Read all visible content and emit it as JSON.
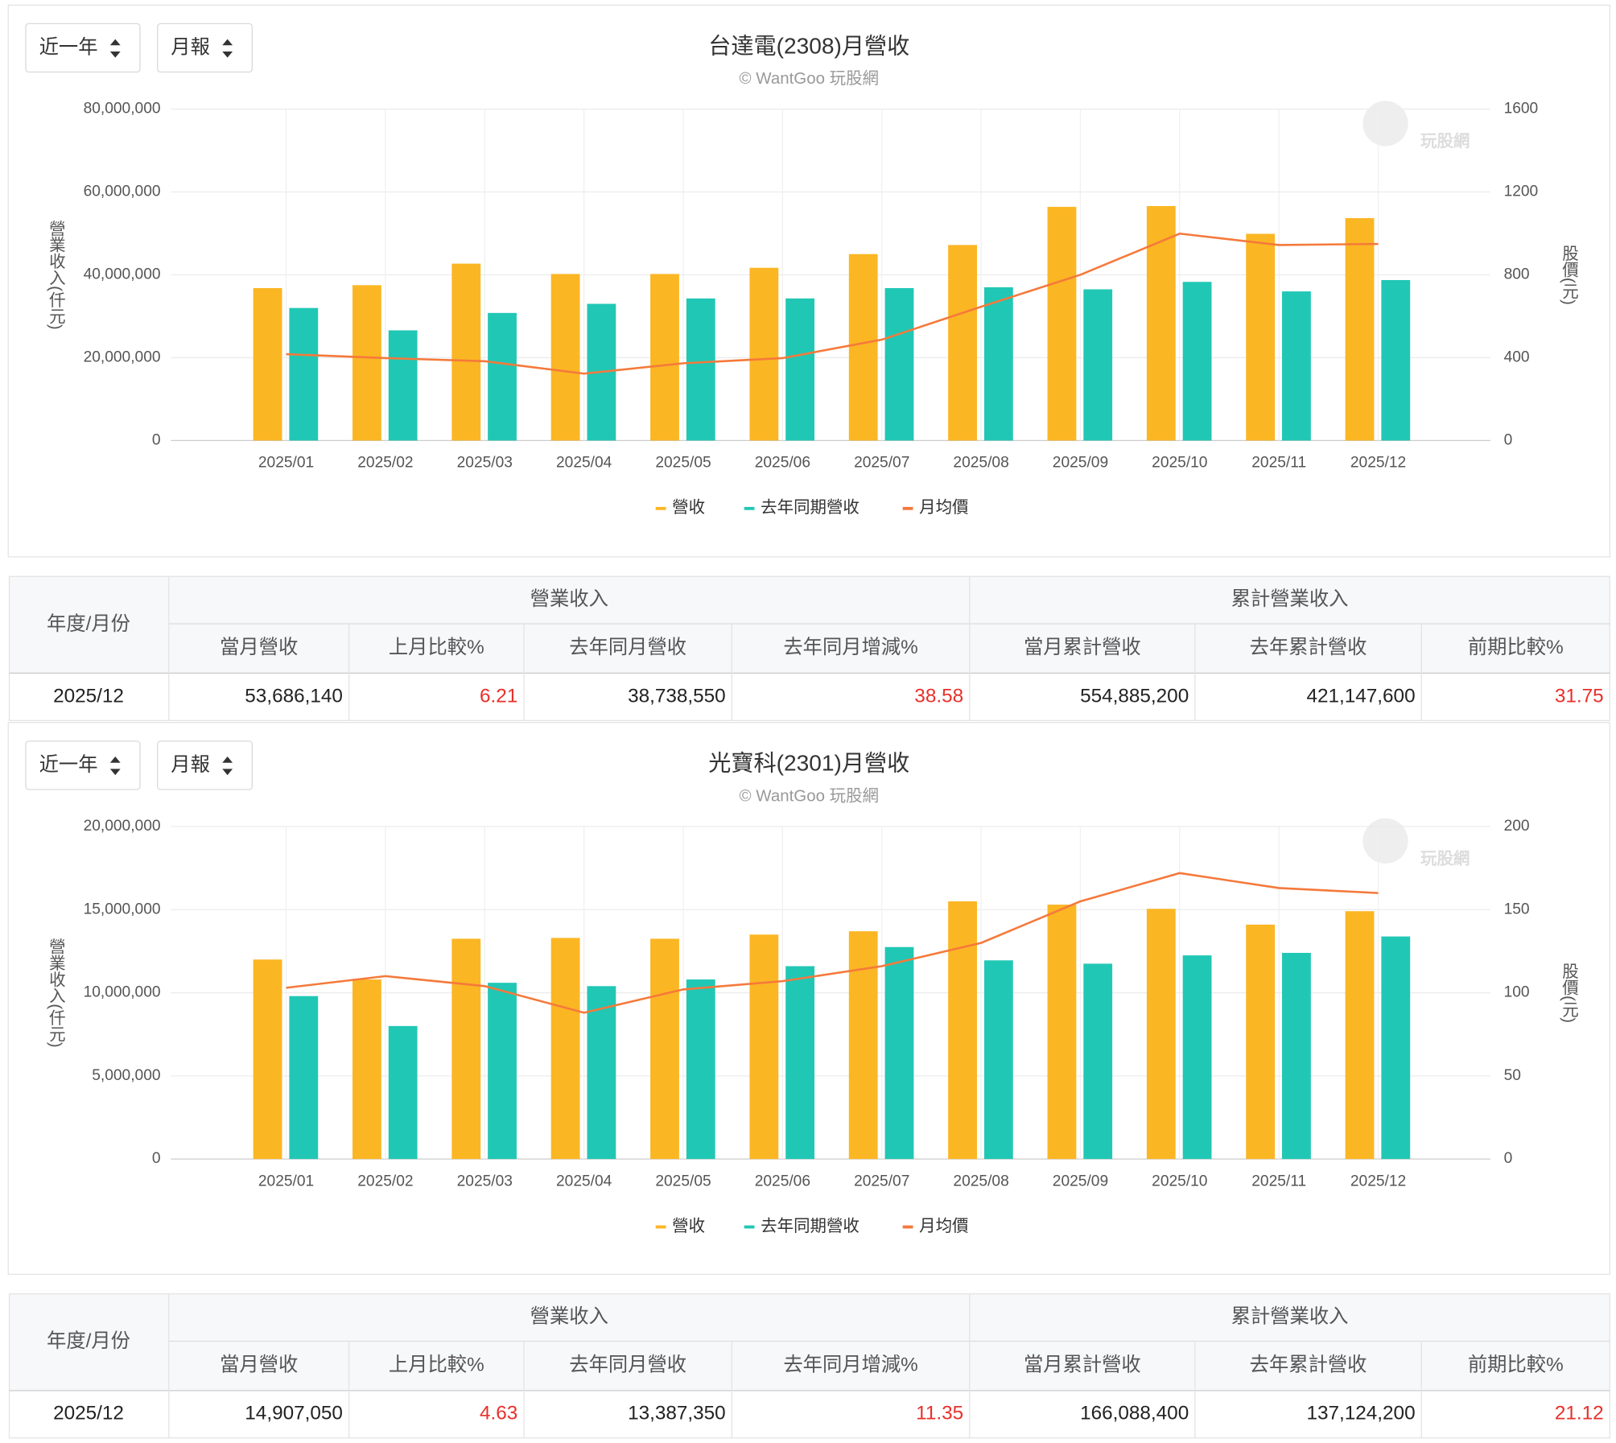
{
  "chart_data": [
    {
      "type": "bar",
      "title": "台達電(2308)月營收",
      "subtitle": "© WantGoo 玩股網",
      "watermark": "玩股網",
      "y_label": "營業收入(仟元)",
      "y2_label": "股價(元)",
      "categories": [
        "2025/01",
        "2025/02",
        "2025/03",
        "2025/04",
        "2025/05",
        "2025/06",
        "2025/07",
        "2025/08",
        "2025/09",
        "2025/10",
        "2025/11",
        "2025/12"
      ],
      "series": [
        {
          "name": "營收",
          "color": "#fbb623",
          "values": [
            36800000,
            37500000,
            42700000,
            40200000,
            40200000,
            41700000,
            45000000,
            47200000,
            56400000,
            56600000,
            49900000,
            53686140
          ]
        },
        {
          "name": "去年同期營收",
          "color": "#21c7b5",
          "values": [
            32000000,
            26600000,
            30800000,
            33000000,
            34300000,
            34300000,
            36800000,
            37000000,
            36500000,
            38300000,
            36000000,
            38738550
          ]
        },
        {
          "name": "月均價",
          "color": "#f5793b",
          "type": "line",
          "axis": "y2",
          "values": [
            417,
            398,
            383,
            323,
            373,
            398,
            487,
            646,
            800,
            999,
            944,
            949
          ]
        }
      ],
      "ylim": [
        0,
        80000000
      ],
      "yticks": [
        0,
        {
          "value": 20000000,
          "label": "20,000,000"
        },
        {
          "value": 40000000,
          "label": "40,000,000"
        },
        {
          "value": 60000000,
          "label": "60,000,000"
        },
        {
          "value": 80000000,
          "label": "80,000,000"
        }
      ],
      "y2lim": [
        0,
        1600
      ],
      "y2ticks": [
        0,
        400,
        800,
        1200,
        1600
      ],
      "grid": true
    },
    {
      "type": "bar",
      "title": "光寶科(2301)月營收",
      "subtitle": "© WantGoo 玩股網",
      "watermark": "玩股網",
      "y_label": "營業收入(仟元)",
      "y2_label": "股價(元)",
      "categories": [
        "2025/01",
        "2025/02",
        "2025/03",
        "2025/04",
        "2025/05",
        "2025/06",
        "2025/07",
        "2025/08",
        "2025/09",
        "2025/10",
        "2025/11",
        "2025/12"
      ],
      "series": [
        {
          "name": "營收",
          "color": "#fbb623",
          "values": [
            12000000,
            10800000,
            13250000,
            13300000,
            13250000,
            13500000,
            13700000,
            15500000,
            15300000,
            15050000,
            14100000,
            14907050
          ]
        },
        {
          "name": "去年同期營收",
          "color": "#21c7b5",
          "values": [
            9800000,
            8000000,
            10600000,
            10400000,
            10800000,
            11600000,
            12750000,
            11950000,
            11750000,
            12250000,
            12400000,
            13387350
          ]
        },
        {
          "name": "月均價",
          "color": "#f5793b",
          "type": "line",
          "axis": "y2",
          "values": [
            103,
            110,
            104,
            88,
            102,
            107,
            116,
            130,
            155,
            172,
            163,
            160
          ]
        }
      ],
      "ylim": [
        0,
        20000000
      ],
      "yticks": [
        0,
        {
          "value": 5000000,
          "label": "5,000,000"
        },
        {
          "value": 10000000,
          "label": "10,000,000"
        },
        {
          "value": 15000000,
          "label": "15,000,000"
        },
        {
          "value": 20000000,
          "label": "20,000,000"
        }
      ],
      "y2lim": [
        0,
        200
      ],
      "y2ticks": [
        0,
        50,
        100,
        150,
        200
      ],
      "grid": true
    }
  ],
  "controls": [
    {
      "range": "近一年",
      "period": "月報"
    },
    {
      "range": "近一年",
      "period": "月報"
    }
  ],
  "tables": [
    {
      "row_header": "年度/月份",
      "group_headers": [
        "營業收入",
        "累計營業收入"
      ],
      "columns": [
        "當月營收",
        "上月比較%",
        "去年同月營收",
        "去年同月增減%",
        "當月累計營收",
        "去年累計營收",
        "前期比較%"
      ],
      "rows": [
        [
          "2025/12",
          "53,686,140",
          "6.21",
          "38,738,550",
          "38.58",
          "554,885,200",
          "421,147,600",
          "31.75"
        ]
      ]
    },
    {
      "row_header": "年度/月份",
      "group_headers": [
        "營業收入",
        "累計營業收入"
      ],
      "columns": [
        "當月營收",
        "上月比較%",
        "去年同月營收",
        "去年同月增減%",
        "當月累計營收",
        "去年累計營收",
        "前期比較%"
      ],
      "rows": [
        [
          "2025/12",
          "14,907,050",
          "4.63",
          "13,387,350",
          "11.35",
          "166,088,400",
          "137,124,200",
          "21.12"
        ]
      ]
    }
  ]
}
